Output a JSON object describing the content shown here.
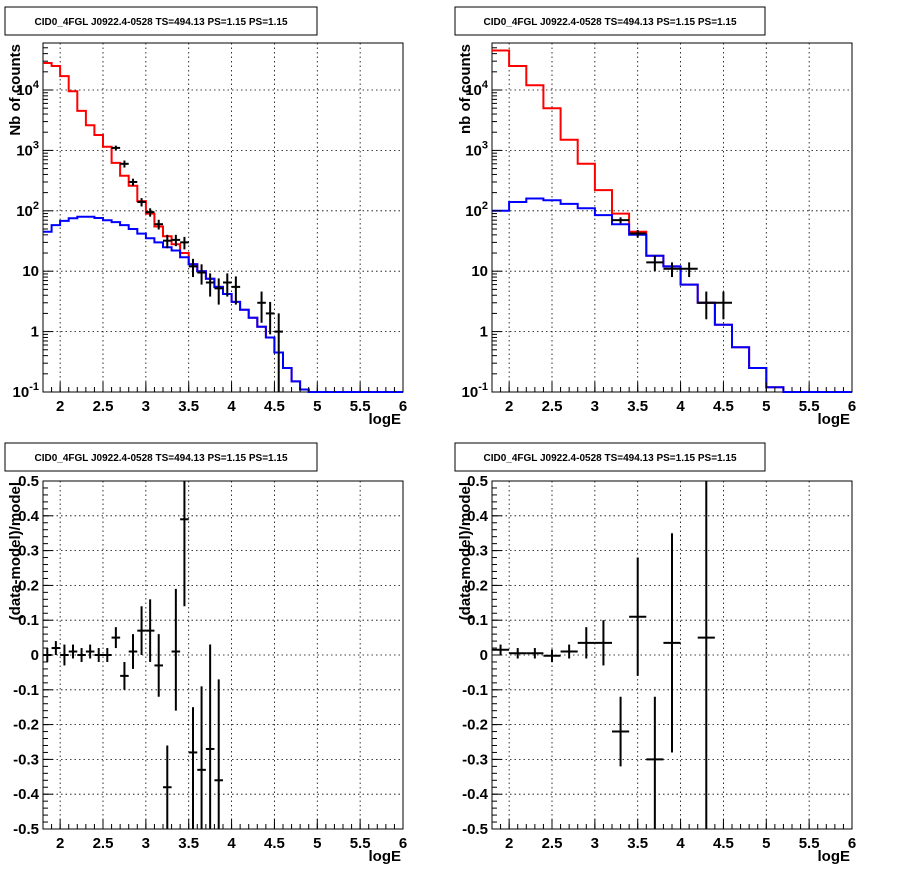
{
  "chart_data": [
    {
      "id": "tl",
      "type": "line",
      "title": "CID0_4FGL J0922.4-0528 TS=494.13 PS=1.15 PS=1.15",
      "xlabel": "logE",
      "ylabel": "Nb of counts",
      "xlim": [
        1.8,
        6
      ],
      "ylim": [
        0.1,
        60000
      ],
      "yscale": "log",
      "grid": true,
      "x_ticks": [
        "2",
        "2.5",
        "3",
        "3.5",
        "4",
        "4.5",
        "5",
        "5.5",
        "6"
      ],
      "y_ticks": [
        "10^-1",
        "1",
        "10",
        "10^2",
        "10^3",
        "10^4"
      ],
      "series": [
        {
          "style": "step",
          "color": "#ff0000",
          "bin_width": 0.1,
          "x": [
            1.85,
            1.95,
            2.05,
            2.15,
            2.25,
            2.35,
            2.45,
            2.55,
            2.65,
            2.75,
            2.85,
            2.95,
            3.05,
            3.15,
            3.25,
            3.35,
            3.45,
            3.55,
            3.65,
            3.75,
            3.85,
            3.95,
            4.05,
            4.15,
            4.25,
            4.35,
            4.45,
            4.55,
            4.65,
            4.75,
            4.85,
            4.95,
            5.05,
            5.15,
            5.25,
            5.35,
            5.45,
            5.55,
            5.65,
            5.75,
            5.85,
            5.95
          ],
          "y": [
            28000,
            25000,
            17000,
            9500,
            4500,
            2600,
            1800,
            1150,
            620,
            380,
            260,
            145,
            90,
            55,
            38,
            28,
            20,
            13,
            10,
            7.5,
            5.5,
            4.2,
            3.1,
            2.3,
            1.7,
            1.2,
            0.8,
            0.45,
            0.25,
            0.15,
            0.11,
            0.1,
            0.1,
            0.1,
            0.1,
            0.1,
            0.1,
            0.1,
            0.1,
            0.1,
            0.1,
            0.1
          ]
        },
        {
          "style": "step",
          "color": "#0000ff",
          "bin_width": 0.1,
          "x": [
            1.85,
            1.95,
            2.05,
            2.15,
            2.25,
            2.35,
            2.45,
            2.55,
            2.65,
            2.75,
            2.85,
            2.95,
            3.05,
            3.15,
            3.25,
            3.35,
            3.45,
            3.55,
            3.65,
            3.75,
            3.85,
            3.95,
            4.05,
            4.15,
            4.25,
            4.35,
            4.45,
            4.55,
            4.65,
            4.75,
            4.85,
            4.95,
            5.05,
            5.15,
            5.25,
            5.35,
            5.45,
            5.55,
            5.65,
            5.75,
            5.85,
            5.95
          ],
          "y": [
            45,
            58,
            68,
            75,
            80,
            80,
            76,
            70,
            65,
            58,
            50,
            42,
            35,
            30,
            25,
            22,
            17,
            13,
            10,
            7.5,
            5.5,
            4.2,
            3.1,
            2.3,
            1.7,
            1.2,
            0.8,
            0.45,
            0.25,
            0.15,
            0.11,
            0.1,
            0.1,
            0.1,
            0.1,
            0.1,
            0.1,
            0.1,
            0.1,
            0.1,
            0.1,
            0.1
          ]
        },
        {
          "style": "errorbar",
          "color": "#000000",
          "x": [
            2.65,
            2.75,
            2.85,
            2.95,
            3.05,
            3.15,
            3.25,
            3.35,
            3.45,
            3.55,
            3.65,
            3.75,
            3.85,
            3.95,
            4.05,
            4.35,
            4.45,
            4.55
          ],
          "xerr": 0.05,
          "y": [
            1100,
            600,
            300,
            140,
            95,
            60,
            32,
            33,
            30,
            12,
            9.5,
            6.5,
            5.2,
            6.5,
            5.5,
            3.0,
            2.0,
            1.0
          ],
          "ylo": [
            1000,
            520,
            260,
            118,
            80,
            49,
            24,
            26,
            23,
            8,
            6,
            3.8,
            2.8,
            3.8,
            2.8,
            1.4,
            0.9,
            0.1
          ],
          "yhi": [
            1200,
            680,
            340,
            162,
            110,
            71,
            40,
            40,
            37,
            16,
            13,
            9.2,
            7.6,
            9.2,
            8.2,
            4.6,
            3.1,
            2.0
          ]
        }
      ]
    },
    {
      "id": "tr",
      "type": "line",
      "title": "CID0_4FGL J0922.4-0528 TS=494.13 PS=1.15 PS=1.15",
      "xlabel": "logE",
      "ylabel": "nb of counts",
      "xlim": [
        1.8,
        6
      ],
      "ylim": [
        0.1,
        60000
      ],
      "yscale": "log",
      "grid": true,
      "x_ticks": [
        "2",
        "2.5",
        "3",
        "3.5",
        "4",
        "4.5",
        "5",
        "5.5",
        "6"
      ],
      "y_ticks": [
        "10^-1",
        "1",
        "10",
        "10^2",
        "10^3",
        "10^4"
      ],
      "series": [
        {
          "style": "step",
          "color": "#ff0000",
          "bin_width": 0.2,
          "x": [
            1.9,
            2.1,
            2.3,
            2.5,
            2.7,
            2.9,
            3.1,
            3.3,
            3.5,
            3.7,
            3.9,
            4.1,
            4.3,
            4.5,
            4.7,
            4.9,
            5.1,
            5.3,
            5.5,
            5.7,
            5.9
          ],
          "y": [
            45000,
            25000,
            12000,
            5000,
            1500,
            600,
            220,
            90,
            45,
            18,
            12,
            6,
            3,
            1.3,
            0.55,
            0.25,
            0.12,
            0.1,
            0.1,
            0.1,
            0.1
          ],
          "y_draw_note": ""
        },
        {
          "style": "step",
          "color": "#0000ff",
          "bin_width": 0.2,
          "x": [
            1.9,
            2.1,
            2.3,
            2.5,
            2.7,
            2.9,
            3.1,
            3.3,
            3.5,
            3.7,
            3.9,
            4.1,
            4.3,
            4.5,
            4.7,
            4.9,
            5.1,
            5.3,
            5.5,
            5.7,
            5.9
          ],
          "y": [
            100,
            140,
            160,
            150,
            130,
            110,
            85,
            60,
            40,
            18,
            12,
            6,
            3,
            1.3,
            0.55,
            0.25,
            0.12,
            0.1,
            0.1,
            0.1,
            0.1
          ]
        },
        {
          "style": "errorbar",
          "color": "#000000",
          "x": [
            3.3,
            3.5,
            3.7,
            3.9,
            4.1,
            4.3,
            4.5
          ],
          "xerr": 0.1,
          "y": [
            70,
            42,
            14,
            11,
            11,
            3,
            3
          ],
          "ylo": [
            62,
            36,
            10,
            8,
            8,
            1.6,
            1.6
          ],
          "yhi": [
            78,
            48,
            18,
            14,
            14,
            4.6,
            4.6
          ]
        }
      ]
    },
    {
      "id": "bl",
      "type": "scatter",
      "title": "CID0_4FGL J0922.4-0528 TS=494.13 PS=1.15 PS=1.15",
      "xlabel": "logE",
      "ylabel": "(data-model)/model",
      "xlim": [
        1.8,
        6
      ],
      "ylim": [
        -0.5,
        0.5
      ],
      "yscale": "linear",
      "grid": true,
      "x_ticks": [
        "2",
        "2.5",
        "3",
        "3.5",
        "4",
        "4.5",
        "5",
        "5.5",
        "6"
      ],
      "y_ticks": [
        "-0.5",
        "-0.4",
        "-0.3",
        "-0.2",
        "-0.1",
        "0",
        "0.1",
        "0.2",
        "0.3",
        "0.4",
        "0.5"
      ],
      "series": [
        {
          "style": "errorbar",
          "color": "#000000",
          "x": [
            1.85,
            1.95,
            2.05,
            2.15,
            2.25,
            2.35,
            2.45,
            2.55,
            2.65,
            2.75,
            2.85,
            2.95,
            3.05,
            3.15,
            3.25,
            3.35,
            3.45,
            3.55,
            3.65,
            3.75,
            3.85
          ],
          "xerr": 0.05,
          "y": [
            0.0,
            0.02,
            0.0,
            0.01,
            0.0,
            0.01,
            0.0,
            0.0,
            0.05,
            -0.06,
            0.01,
            0.07,
            0.07,
            -0.03,
            -0.38,
            0.01,
            0.39,
            -0.28,
            -0.33,
            -0.27,
            -0.36
          ],
          "ylo": [
            -0.02,
            0.0,
            -0.03,
            -0.01,
            -0.02,
            -0.01,
            -0.02,
            -0.02,
            0.02,
            -0.1,
            -0.04,
            0.0,
            -0.02,
            -0.12,
            -0.5,
            -0.16,
            0.14,
            -0.5,
            -0.5,
            -0.5,
            -0.5
          ],
          "yhi": [
            0.02,
            0.04,
            0.03,
            0.03,
            0.02,
            0.03,
            0.02,
            0.02,
            0.08,
            -0.02,
            0.06,
            0.14,
            0.16,
            0.06,
            -0.26,
            0.19,
            0.5,
            -0.15,
            -0.09,
            0.03,
            -0.07
          ]
        }
      ]
    },
    {
      "id": "br",
      "type": "scatter",
      "title": "CID0_4FGL J0922.4-0528 TS=494.13 PS=1.15 PS=1.15",
      "xlabel": "logE",
      "ylabel": "(data-model)/model",
      "xlim": [
        1.8,
        6
      ],
      "ylim": [
        -0.5,
        0.5
      ],
      "yscale": "linear",
      "grid": true,
      "x_ticks": [
        "2",
        "2.5",
        "3",
        "3.5",
        "4",
        "4.5",
        "5",
        "5.5",
        "6"
      ],
      "y_ticks": [
        "-0.5",
        "-0.4",
        "-0.3",
        "-0.2",
        "-0.1",
        "0",
        "0.1",
        "0.2",
        "0.3",
        "0.4",
        "0.5"
      ],
      "series": [
        {
          "style": "errorbar",
          "color": "#000000",
          "x": [
            1.9,
            2.1,
            2.3,
            2.5,
            2.7,
            2.9,
            3.1,
            3.3,
            3.5,
            3.7,
            3.9,
            4.3
          ],
          "xerr": 0.1,
          "y": [
            0.015,
            0.005,
            0.005,
            -0.002,
            0.01,
            0.035,
            0.035,
            -0.22,
            0.11,
            -0.3,
            0.035,
            0.05
          ],
          "ylo": [
            0.0,
            -0.01,
            -0.01,
            -0.02,
            -0.01,
            -0.01,
            -0.03,
            -0.32,
            -0.06,
            -0.5,
            -0.28,
            -0.5
          ],
          "yhi": [
            0.03,
            0.02,
            0.02,
            0.016,
            0.03,
            0.08,
            0.1,
            -0.12,
            0.28,
            -0.12,
            0.35,
            0.5
          ]
        }
      ]
    }
  ]
}
